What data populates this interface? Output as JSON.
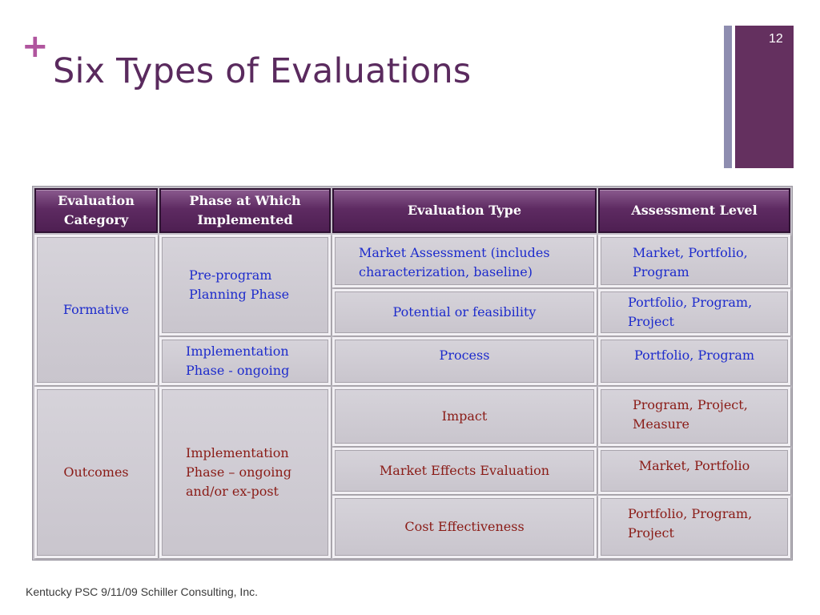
{
  "slide": {
    "title": "Six Types of Evaluations",
    "number": "12",
    "plus_glyph": "+",
    "footer": "Kentucky PSC 9/11/09  Schiller Consulting, Inc.",
    "colors": {
      "title": "#5a2a5e",
      "accent": "#b0559e",
      "header_fill": "#5e2b62",
      "blue_text": "#1d2bcc",
      "red_text": "#8a1b16"
    }
  },
  "table": {
    "headers": {
      "category": "Evaluation Category",
      "phase": "Phase at Which Implemented",
      "type": "Evaluation Type",
      "level": "Assessment Level"
    },
    "categories": {
      "formative": "Formative",
      "outcomes": "Outcomes"
    },
    "phases": {
      "preprogram": "Pre-program Planning Phase",
      "impl_ongoing": "Implementation Phase - ongoing",
      "impl_expost": "Implementation Phase – ongoing and/or ex-post"
    },
    "rows": [
      {
        "type": "Market Assessment (includes characterization, baseline)",
        "level": "Market, Portfolio, Program"
      },
      {
        "type": "Potential or feasibility",
        "level": "Portfolio, Program, Project"
      },
      {
        "type": "Process",
        "level": "Portfolio, Program"
      },
      {
        "type": "Impact",
        "level": "Program, Project, Measure"
      },
      {
        "type": "Market Effects Evaluation",
        "level": "Market, Portfolio"
      },
      {
        "type": "Cost Effectiveness",
        "level": "Portfolio, Program, Project"
      }
    ]
  }
}
